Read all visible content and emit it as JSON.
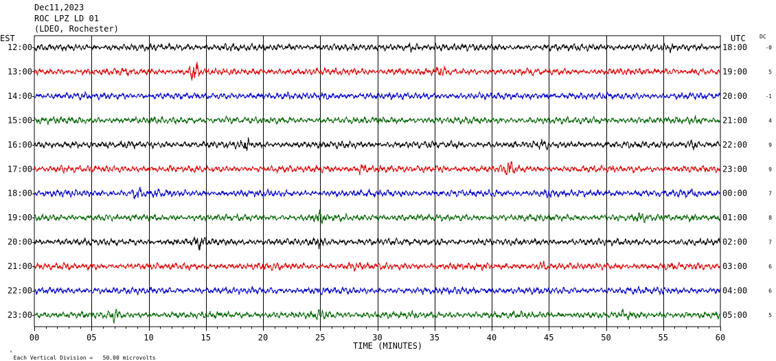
{
  "header": {
    "date": "Dec11,2023",
    "station": "ROC LPZ LD 01",
    "network": "(LDEO, Rochester)"
  },
  "left_axis_title": "EST",
  "right_axis_title": "UTC",
  "dc_title": "DC",
  "footer_note": "Each Vertical Division =   50.00 microvolts",
  "colors": {
    "black": "#000000",
    "red": "#dd0000",
    "blue": "#0000cc",
    "green": "#006400",
    "grid": "#000000"
  },
  "chart_data": {
    "type": "line",
    "title": "Dec11,2023 ROC LPZ LD 01 (LDEO, Rochester)",
    "xlabel": "TIME (MINUTES)",
    "xlim": [
      0,
      60
    ],
    "x_ticks": [
      "00",
      "05",
      "10",
      "15",
      "20",
      "25",
      "30",
      "35",
      "40",
      "45",
      "50",
      "55",
      "60"
    ],
    "grid": true,
    "rows": [
      {
        "est": "12:00",
        "utc": "18:00",
        "dc": "-0",
        "color": "black",
        "events": [
          {
            "t": 33,
            "amp": 1.9
          },
          {
            "t": 17,
            "amp": 1.3
          },
          {
            "t": 55.5,
            "amp": 1.3
          }
        ]
      },
      {
        "est": "13:00",
        "utc": "19:00",
        "dc": "5",
        "color": "red",
        "events": [
          {
            "t": 14,
            "amp": 2.6
          },
          {
            "t": 35.5,
            "amp": 1.5
          },
          {
            "t": 58,
            "amp": 1.3
          }
        ]
      },
      {
        "est": "14:00",
        "utc": "20:00",
        "dc": "-1",
        "color": "blue",
        "events": [
          {
            "t": 25.5,
            "amp": 1.3
          },
          {
            "t": 27.5,
            "amp": 1.3
          },
          {
            "t": 45,
            "amp": 1.2
          }
        ]
      },
      {
        "est": "15:00",
        "utc": "21:00",
        "dc": "4",
        "color": "green",
        "events": [
          {
            "t": 17,
            "amp": 1.3
          },
          {
            "t": 58,
            "amp": 1.3
          }
        ]
      },
      {
        "est": "16:00",
        "utc": "22:00",
        "dc": "9",
        "color": "black",
        "events": [
          {
            "t": 18.5,
            "amp": 2.0
          },
          {
            "t": 57.5,
            "amp": 1.9
          },
          {
            "t": 44.5,
            "amp": 1.5
          },
          {
            "t": 3.5,
            "amp": 1.4
          }
        ]
      },
      {
        "est": "17:00",
        "utc": "23:00",
        "dc": "9",
        "color": "red",
        "events": [
          {
            "t": 41.5,
            "amp": 2.0
          },
          {
            "t": 28.5,
            "amp": 1.8
          },
          {
            "t": 35.5,
            "amp": 1.7
          },
          {
            "t": 2.5,
            "amp": 1.3
          }
        ]
      },
      {
        "est": "18:00",
        "utc": "00:00",
        "dc": "7",
        "color": "blue",
        "events": [
          {
            "t": 9,
            "amp": 1.6
          },
          {
            "t": 11,
            "amp": 1.5
          },
          {
            "t": 45,
            "amp": 1.6
          },
          {
            "t": 57.5,
            "amp": 1.3
          }
        ]
      },
      {
        "est": "19:00",
        "utc": "01:00",
        "dc": "8",
        "color": "green",
        "events": [
          {
            "t": 25,
            "amp": 1.9
          },
          {
            "t": 57.5,
            "amp": 1.6
          },
          {
            "t": 53,
            "amp": 1.3
          }
        ]
      },
      {
        "est": "20:00",
        "utc": "02:00",
        "dc": "7",
        "color": "black",
        "events": [
          {
            "t": 14.5,
            "amp": 1.7
          },
          {
            "t": 25,
            "amp": 1.8
          },
          {
            "t": 29.5,
            "amp": 1.3
          },
          {
            "t": 35.5,
            "amp": 1.2
          }
        ]
      },
      {
        "est": "21:00",
        "utc": "03:00",
        "dc": "6",
        "color": "red",
        "events": [
          {
            "t": 44.5,
            "amp": 1.7
          },
          {
            "t": 28,
            "amp": 1.3
          }
        ]
      },
      {
        "est": "22:00",
        "utc": "04:00",
        "dc": "6",
        "color": "blue",
        "events": [
          {
            "t": 25,
            "amp": 1.3
          },
          {
            "t": 40,
            "amp": 1.2
          },
          {
            "t": 55,
            "amp": 1.2
          }
        ]
      },
      {
        "est": "23:00",
        "utc": "05:00",
        "dc": "5",
        "color": "green",
        "events": [
          {
            "t": 7,
            "amp": 1.6
          },
          {
            "t": 25,
            "amp": 1.6
          },
          {
            "t": 51.5,
            "amp": 1.4
          }
        ]
      }
    ]
  }
}
